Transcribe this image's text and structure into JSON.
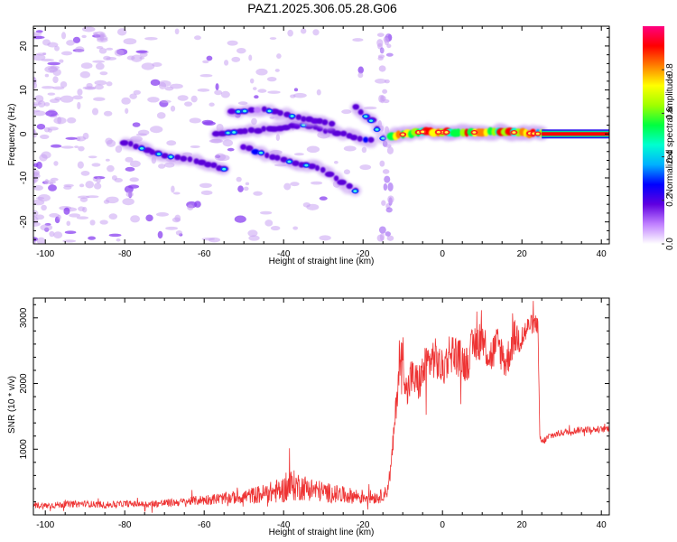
{
  "figure": {
    "title": "PAZ1.2025.306.05.28.G06"
  },
  "colors": {
    "snr_line": "#ee3333",
    "frame": "#000000",
    "ridge_dark": "#5a00d8",
    "halo": "#c9a2f3"
  },
  "chart_data": [
    {
      "type": "heatmap",
      "name": "spectrogram",
      "xlabel": "Height of straight line (km)",
      "ylabel": "Frequency (Hz)",
      "xlim": [
        -103,
        42
      ],
      "ylim": [
        -25,
        24.5
      ],
      "xticks": [
        -100,
        -80,
        -60,
        -40,
        -20,
        0,
        20,
        40
      ],
      "xtick_labels": [
        "-100",
        "-80",
        "-60",
        "-40",
        "-20",
        "0",
        "20",
        "40"
      ],
      "yticks": [
        -20,
        -10,
        0,
        10,
        20
      ],
      "ytick_labels": [
        "-20",
        "-10",
        "0",
        "10",
        "20"
      ],
      "colorbar": {
        "label": "Normalized spectral amplitude",
        "range": [
          0,
          1
        ],
        "ticks": [
          0.0,
          0.2,
          0.4,
          0.6,
          0.8
        ],
        "tick_labels": [
          "0.0",
          "0.2",
          "0.4",
          "0.6",
          "0.8"
        ],
        "colormap": [
          "#ffffff",
          "#c080ff",
          "#6000e0",
          "#0000ff",
          "#00b0ff",
          "#00ffd0",
          "#00ff40",
          "#a0ff00",
          "#ffff00",
          "#ff8000",
          "#ff0000",
          "#ff0080"
        ]
      },
      "ridges": [
        {
          "name": "ridge-a",
          "points": [
            [
              -80,
              -2
            ],
            [
              -70,
              -5
            ],
            [
              -62,
              -6
            ],
            [
              -55,
              -8
            ]
          ],
          "amplitude": 0.25
        },
        {
          "name": "ridge-b",
          "points": [
            [
              -57,
              0
            ],
            [
              -45,
              1
            ],
            [
              -35,
              2
            ],
            [
              -25,
              0
            ],
            [
              -18,
              -1.5
            ]
          ],
          "amplitude": 0.3
        },
        {
          "name": "ridge-c",
          "points": [
            [
              -53,
              5
            ],
            [
              -45,
              5.5
            ],
            [
              -35,
              3.5
            ],
            [
              -28,
              2.5
            ]
          ],
          "amplitude": 0.2
        },
        {
          "name": "ridge-d",
          "points": [
            [
              -50,
              -3
            ],
            [
              -40,
              -6
            ],
            [
              -30,
              -8
            ],
            [
              -22,
              -13
            ]
          ],
          "amplitude": 0.22
        },
        {
          "name": "ridge-e",
          "points": [
            [
              -22,
              6
            ],
            [
              -18,
              3
            ],
            [
              -15,
              -1
            ]
          ],
          "amplitude": 0.2
        },
        {
          "name": "carrier-patchy",
          "points": [
            [
              -13,
              -0.5
            ],
            [
              -5,
              0.5
            ],
            [
              5,
              0.3
            ],
            [
              15,
              0.5
            ],
            [
              25,
              0
            ]
          ],
          "amplitude": 0.6
        },
        {
          "name": "carrier-solid",
          "points": [
            [
              25,
              0
            ],
            [
              42,
              0
            ]
          ],
          "amplitude": 0.95
        }
      ]
    },
    {
      "type": "line",
      "name": "snr",
      "xlabel": "Height of straight line (km)",
      "ylabel": "SNR (10 * v/v)",
      "xlim": [
        -103,
        42
      ],
      "ylim": [
        0,
        3300
      ],
      "xticks": [
        -100,
        -80,
        -60,
        -40,
        -20,
        0,
        20,
        40
      ],
      "xtick_labels": [
        "-100",
        "-80",
        "-60",
        "-40",
        "-20",
        "0",
        "20",
        "40"
      ],
      "yticks": [
        1000,
        2000,
        3000
      ],
      "ytick_labels": [
        "1000",
        "2000",
        "3000"
      ],
      "series": [
        {
          "name": "SNR",
          "x": [
            -103,
            -100,
            -95,
            -90,
            -85,
            -80,
            -75,
            -70,
            -65,
            -60,
            -55,
            -50,
            -45,
            -40,
            -38,
            -35,
            -30,
            -25,
            -20,
            -16,
            -14,
            -13,
            -12,
            -11,
            -10,
            -9,
            -8,
            -6,
            -4,
            -2,
            0,
            2,
            4,
            6,
            8,
            10,
            12,
            14,
            16,
            18,
            20,
            22,
            24,
            24.5,
            25,
            27,
            30,
            35,
            40,
            42
          ],
          "y": [
            150,
            140,
            160,
            170,
            150,
            170,
            160,
            180,
            200,
            230,
            250,
            280,
            320,
            380,
            450,
            420,
            350,
            300,
            280,
            270,
            350,
            700,
            1400,
            2200,
            2500,
            1800,
            2100,
            2000,
            2300,
            2400,
            2200,
            2500,
            2400,
            2300,
            2600,
            2700,
            2400,
            2600,
            2300,
            2700,
            2700,
            2900,
            2900,
            1200,
            1100,
            1200,
            1250,
            1300,
            1300,
            1320
          ],
          "noise": [
            50,
            50,
            50,
            50,
            50,
            50,
            50,
            60,
            60,
            80,
            90,
            110,
            150,
            200,
            250,
            200,
            160,
            130,
            110,
            100,
            100,
            150,
            200,
            300,
            350,
            300,
            300,
            300,
            320,
            320,
            300,
            330,
            300,
            300,
            320,
            320,
            300,
            300,
            280,
            280,
            250,
            150,
            150,
            80,
            60,
            60,
            50,
            50,
            50,
            50
          ]
        }
      ]
    }
  ]
}
